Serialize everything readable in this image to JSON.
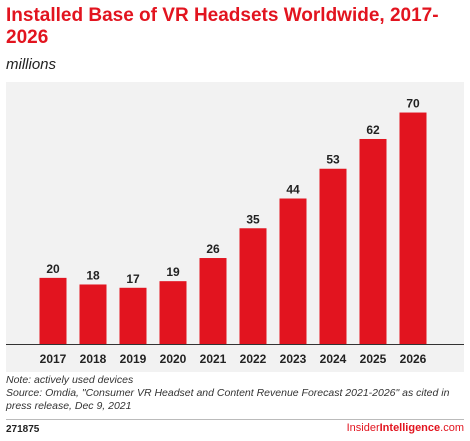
{
  "header": {
    "title": "Installed Base of VR Headsets Worldwide, 2017-2026",
    "subtitle": "millions"
  },
  "chart_data": {
    "type": "bar",
    "title": "Installed Base of VR Headsets Worldwide, 2017-2026",
    "subtitle": "millions",
    "categories": [
      "2017",
      "2018",
      "2019",
      "2020",
      "2021",
      "2022",
      "2023",
      "2024",
      "2025",
      "2026"
    ],
    "values": [
      20,
      18,
      17,
      19,
      26,
      35,
      44,
      53,
      62,
      70
    ],
    "xlabel": "",
    "ylabel": "",
    "ylim": [
      0,
      75
    ],
    "grid": false,
    "bar_color": "#e2141f",
    "background_color": "#f2f2f2",
    "data_labels": true
  },
  "notes": {
    "note": "Note: actively used devices",
    "source": "Source: Omdia, \"Consumer VR Headset and Content Revenue Forecast 2021-2026\" as cited in press release, Dec 9, 2021"
  },
  "footer": {
    "chart_id": "271875",
    "brand_part1": "Insider",
    "brand_part2": "Intelligence",
    "brand_part3": ".com",
    "brand_color": "#e2141f"
  }
}
